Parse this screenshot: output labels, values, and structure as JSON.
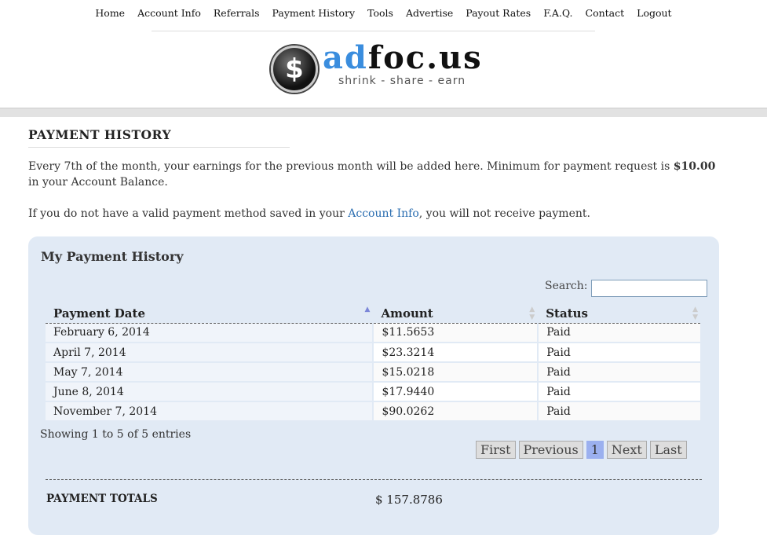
{
  "nav": [
    "Home",
    "Account Info",
    "Referrals",
    "Payment History",
    "Tools",
    "Advertise",
    "Payout Rates",
    "F.A.Q.",
    "Contact",
    "Logout"
  ],
  "logo": {
    "brand_a": "ad",
    "brand_b": "foc.us",
    "tagline": "shrink - share - earn",
    "coin": "$"
  },
  "page_title": "PAYMENT HISTORY",
  "intro": {
    "p1a": "Every 7th of the month, your earnings for the previous month will be added here. Minimum for payment request is ",
    "p1b": "$10.00",
    "p1c": " in your Account Balance.",
    "p2a": "If you do not have a valid payment method saved in your ",
    "p2link": "Account Info",
    "p2b": ", you will not receive payment."
  },
  "box": {
    "title": "My Payment History",
    "search_label": "Search:",
    "search_value": "",
    "columns": [
      "Payment Date",
      "Amount",
      "Status"
    ],
    "rows": [
      [
        "February 6, 2014",
        "$11.5653",
        "Paid"
      ],
      [
        "April 7, 2014",
        "$23.3214",
        "Paid"
      ],
      [
        "May 7, 2014",
        "$15.0218",
        "Paid"
      ],
      [
        "June 8, 2014",
        "$17.9440",
        "Paid"
      ],
      [
        "November 7, 2014",
        "$90.0262",
        "Paid"
      ]
    ],
    "info": "Showing 1 to 5 of 5 entries",
    "pager": [
      "First",
      "Previous",
      "1",
      "Next",
      "Last"
    ],
    "totals_label": "PAYMENT TOTALS",
    "totals_value": "$ 157.8786"
  },
  "colors": {
    "accent": "#3a8dde",
    "panel": "#e1eaf5",
    "current_page": "#9bb0ef"
  }
}
